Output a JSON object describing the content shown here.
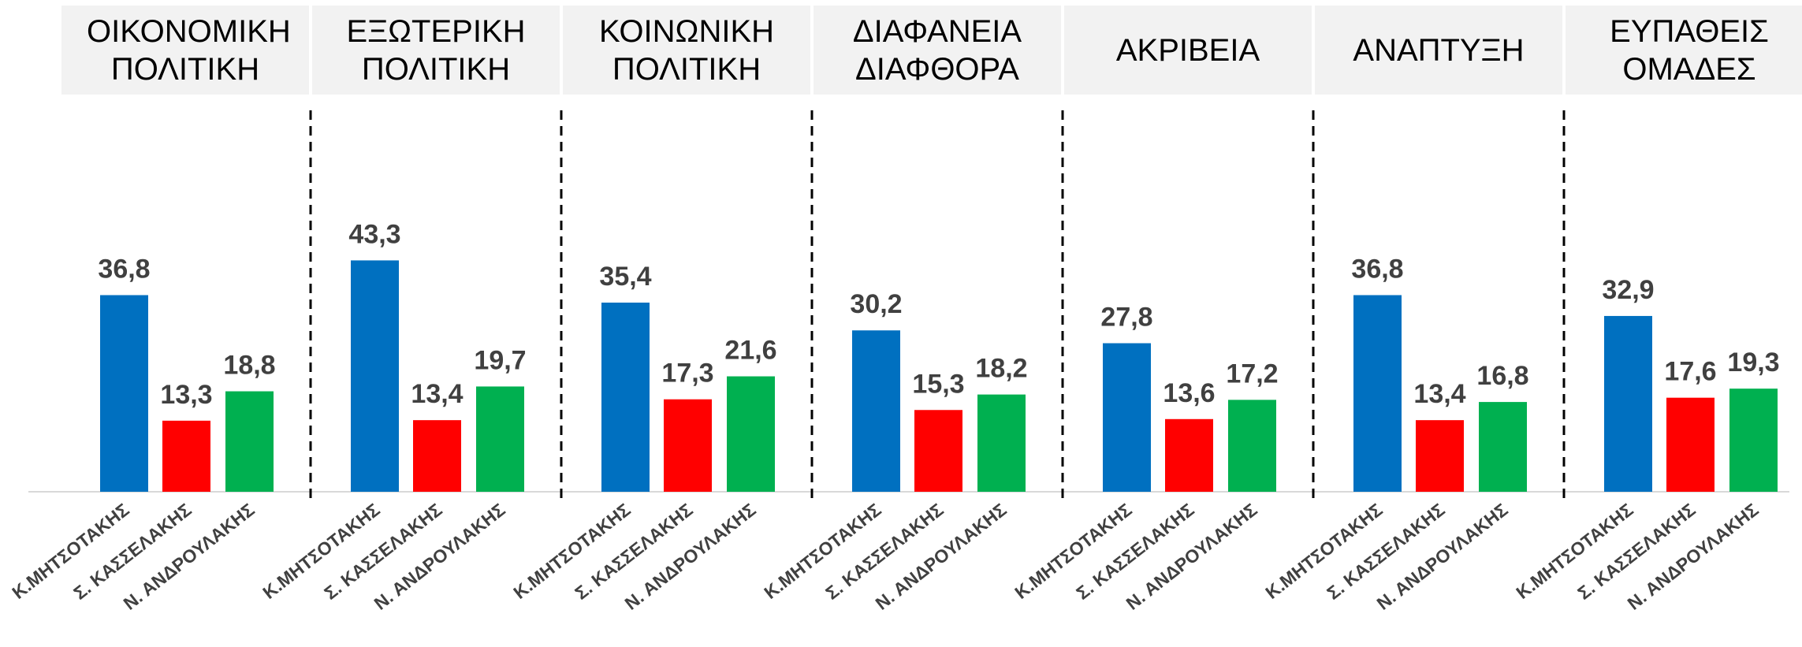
{
  "chart_data": {
    "type": "bar",
    "categories": [
      "ΟΙΚΟΝΟΜΙΚΗ ΠΟΛΙΤΙΚΗ",
      "ΕΞΩΤΕΡΙΚΗ ΠΟΛΙΤΙΚΗ",
      "ΚΟΙΝΩΝΙΚΗ ΠΟΛΙΤΙΚΗ",
      "ΔΙΑΦΑΝΕΙΑ ΔΙΑΦΘΟΡΑ",
      "ΑΚΡΙΒΕΙΑ",
      "ΑΝΑΠΤΥΞΗ",
      "ΕΥΠΑΘΕΙΣ ΟΜΑΔΕΣ"
    ],
    "series": [
      {
        "name": "Κ.ΜΗΤΣΟΤΑΚΗΣ",
        "color": "#0070c0",
        "values": [
          36.8,
          43.3,
          35.4,
          30.2,
          27.8,
          36.8,
          32.9
        ],
        "value_labels": [
          "36,8",
          "43,3",
          "35,4",
          "30,2",
          "27,8",
          "36,8",
          "32,9"
        ]
      },
      {
        "name": "Σ. ΚΑΣΣΕΛΑΚΗΣ",
        "color": "#ff0000",
        "values": [
          13.3,
          13.4,
          17.3,
          15.3,
          13.6,
          13.4,
          17.6
        ],
        "value_labels": [
          "13,3",
          "13,4",
          "17,3",
          "15,3",
          "13,6",
          "13,4",
          "17,6"
        ]
      },
      {
        "name": "Ν. ΑΝΔΡΟΥΛΑΚΗΣ",
        "color": "#00b050",
        "values": [
          18.8,
          19.7,
          21.6,
          18.2,
          17.2,
          16.8,
          19.3
        ],
        "value_labels": [
          "18,8",
          "19,7",
          "21,6",
          "18,2",
          "17,2",
          "16,8",
          "19,3"
        ]
      }
    ]
  }
}
